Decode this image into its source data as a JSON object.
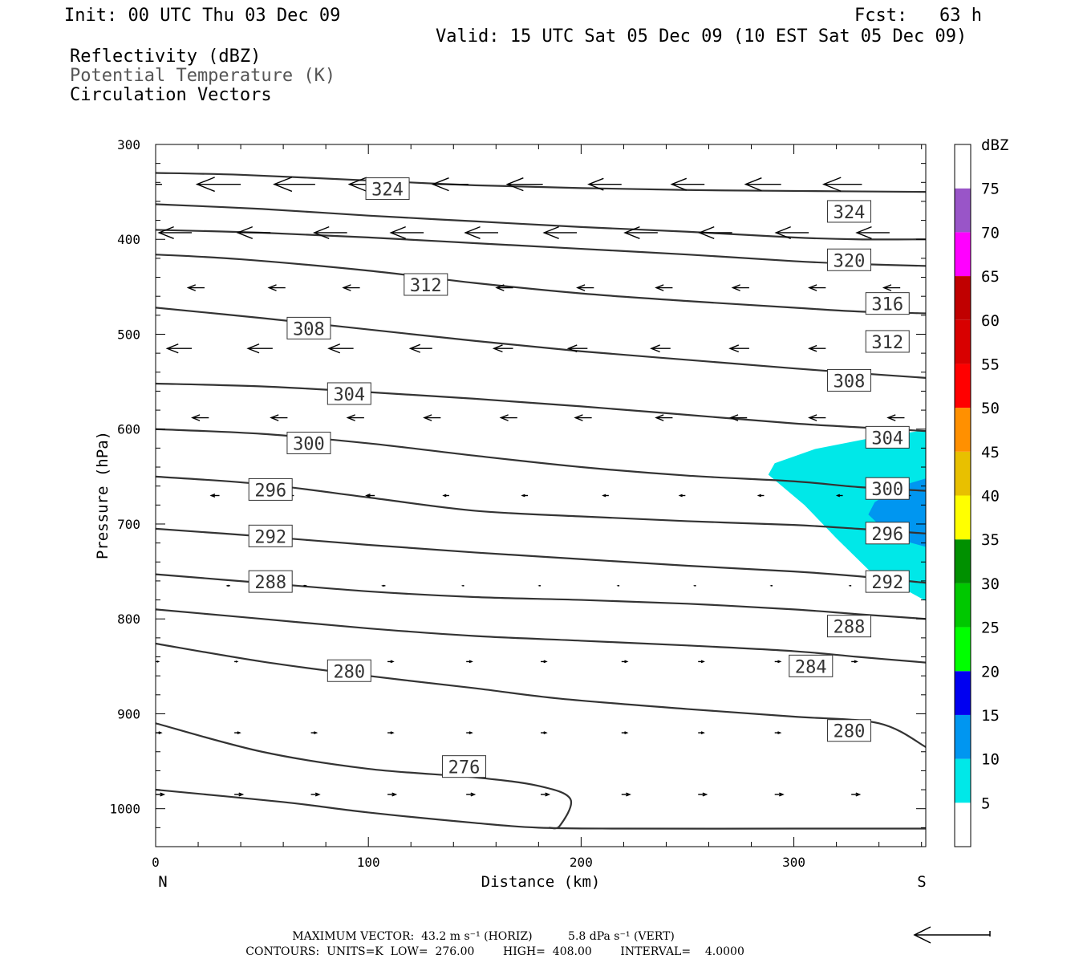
{
  "header": {
    "init": "Init: 00 UTC Thu 03 Dec 09",
    "fcst": "Fcst:   63 h",
    "valid": "Valid: 15 UTC Sat 05 Dec 09 (10 EST Sat 05 Dec 09)",
    "field1": "Reflectivity (dBZ)",
    "field2": "Potential Temperature (K)",
    "field3": "Circulation Vectors"
  },
  "footer": {
    "line1": "MAXIMUM VECTOR:  43.2 m s⁻¹ (HORIZ)          5.8 dPa s⁻¹ (VERT)",
    "line2": "CONTOURS:  UNITS=K  LOW=  276.00        HIGH=  408.00        INTERVAL=    4.0000"
  },
  "chart_data": {
    "type": "cross-section",
    "xlabel": "Distance (km)",
    "ylabel": "Pressure (hPa)",
    "x_end_labels": {
      "left": "N",
      "right": "S"
    },
    "xlim": [
      0,
      362
    ],
    "ylim": [
      1040,
      300
    ],
    "x_ticks": [
      0,
      100,
      200,
      300
    ],
    "y_ticks": [
      300,
      400,
      500,
      600,
      700,
      800,
      900,
      1000
    ],
    "colors": {
      "contour": "#333333",
      "refl_5": "#00e8e8",
      "refl_10": "#0096f0"
    },
    "theta_contours": [
      {
        "value": 324,
        "points": [
          [
            0,
            330
          ],
          [
            40,
            332
          ],
          [
            100,
            338
          ],
          [
            150,
            343
          ],
          [
            200,
            346
          ],
          [
            250,
            348
          ],
          [
            300,
            349
          ],
          [
            362,
            350
          ]
        ]
      },
      {
        "value": 324,
        "points": [
          [
            0,
            363
          ],
          [
            50,
            368
          ],
          [
            100,
            375
          ],
          [
            150,
            381
          ],
          [
            200,
            387
          ],
          [
            250,
            392
          ],
          [
            300,
            398
          ],
          [
            330,
            400
          ],
          [
            362,
            400
          ]
        ]
      },
      {
        "value": 320,
        "points": [
          [
            0,
            390
          ],
          [
            50,
            393
          ],
          [
            100,
            398
          ],
          [
            150,
            404
          ],
          [
            200,
            410
          ],
          [
            250,
            416
          ],
          [
            300,
            423
          ],
          [
            330,
            426
          ],
          [
            362,
            428
          ]
        ]
      },
      {
        "value": 316,
        "points": [
          [
            0,
            416
          ],
          [
            40,
            421
          ],
          [
            100,
            433
          ],
          [
            150,
            446
          ],
          [
            200,
            457
          ],
          [
            250,
            465
          ],
          [
            300,
            472
          ],
          [
            330,
            476
          ],
          [
            362,
            478
          ]
        ]
      },
      {
        "value": 312,
        "points": [
          [
            0,
            472
          ],
          [
            50,
            483
          ],
          [
            100,
            495
          ],
          [
            150,
            507
          ],
          [
            200,
            518
          ],
          [
            250,
            527
          ],
          [
            300,
            536
          ],
          [
            330,
            541
          ],
          [
            362,
            546
          ]
        ]
      },
      {
        "value": 308,
        "points": [
          [
            0,
            552
          ],
          [
            50,
            555
          ],
          [
            100,
            561
          ],
          [
            150,
            568
          ],
          [
            200,
            576
          ],
          [
            250,
            585
          ],
          [
            300,
            594
          ],
          [
            330,
            598
          ],
          [
            362,
            602
          ]
        ]
      },
      {
        "value": 304,
        "points": [
          [
            0,
            600
          ],
          [
            50,
            605
          ],
          [
            100,
            615
          ],
          [
            150,
            628
          ],
          [
            200,
            640
          ],
          [
            250,
            649
          ],
          [
            300,
            655
          ],
          [
            330,
            661
          ],
          [
            362,
            665
          ]
        ]
      },
      {
        "value": 300,
        "points": [
          [
            0,
            650
          ],
          [
            50,
            658
          ],
          [
            100,
            672
          ],
          [
            150,
            686
          ],
          [
            200,
            692
          ],
          [
            250,
            697
          ],
          [
            300,
            701
          ],
          [
            330,
            705
          ],
          [
            362,
            710
          ]
        ]
      },
      {
        "value": 296,
        "points": [
          [
            0,
            705
          ],
          [
            50,
            713
          ],
          [
            100,
            722
          ],
          [
            150,
            730
          ],
          [
            200,
            737
          ],
          [
            250,
            744
          ],
          [
            300,
            750
          ],
          [
            330,
            755
          ],
          [
            362,
            762
          ]
        ]
      },
      {
        "value": 292,
        "points": [
          [
            0,
            753
          ],
          [
            50,
            762
          ],
          [
            100,
            771
          ],
          [
            150,
            777
          ],
          [
            200,
            780
          ],
          [
            250,
            784
          ],
          [
            300,
            790
          ],
          [
            330,
            795
          ],
          [
            362,
            800
          ]
        ]
      },
      {
        "value": 288,
        "points": [
          [
            0,
            790
          ],
          [
            50,
            800
          ],
          [
            100,
            810
          ],
          [
            150,
            818
          ],
          [
            200,
            823
          ],
          [
            250,
            828
          ],
          [
            300,
            834
          ],
          [
            330,
            840
          ],
          [
            362,
            846
          ]
        ]
      },
      {
        "value": 284,
        "points": [
          [
            0,
            826
          ],
          [
            50,
            845
          ],
          [
            100,
            860
          ],
          [
            150,
            873
          ],
          [
            190,
            884
          ],
          [
            250,
            895
          ],
          [
            300,
            903
          ],
          [
            340,
            910
          ],
          [
            362,
            935
          ]
        ]
      },
      {
        "value": 280,
        "points": [
          [
            0,
            910
          ],
          [
            50,
            940
          ],
          [
            100,
            958
          ],
          [
            150,
            967
          ],
          [
            180,
            976
          ],
          [
            195,
            990
          ],
          [
            190,
            1018
          ],
          [
            185,
            1020
          ]
        ]
      },
      {
        "value": 276,
        "points": [
          [
            0,
            980
          ],
          [
            60,
            993
          ],
          [
            100,
            1004
          ],
          [
            150,
            1015
          ],
          [
            180,
            1020
          ],
          [
            220,
            1021
          ],
          [
            300,
            1021
          ],
          [
            362,
            1021
          ]
        ]
      }
    ],
    "contour_labels": [
      {
        "text": "324",
        "x": 109,
        "y": 347
      },
      {
        "text": "324",
        "x": 326,
        "y": 371
      },
      {
        "text": "320",
        "x": 326,
        "y": 422
      },
      {
        "text": "316",
        "x": 344,
        "y": 468
      },
      {
        "text": "312",
        "x": 127,
        "y": 448
      },
      {
        "text": "312",
        "x": 344,
        "y": 508
      },
      {
        "text": "308",
        "x": 72,
        "y": 494
      },
      {
        "text": "308",
        "x": 326,
        "y": 549
      },
      {
        "text": "304",
        "x": 91,
        "y": 563
      },
      {
        "text": "304",
        "x": 344,
        "y": 609
      },
      {
        "text": "300",
        "x": 72,
        "y": 615
      },
      {
        "text": "300",
        "x": 344,
        "y": 663
      },
      {
        "text": "296",
        "x": 54,
        "y": 664
      },
      {
        "text": "296",
        "x": 344,
        "y": 710
      },
      {
        "text": "292",
        "x": 54,
        "y": 713
      },
      {
        "text": "292",
        "x": 344,
        "y": 761
      },
      {
        "text": "288",
        "x": 54,
        "y": 761
      },
      {
        "text": "288",
        "x": 326,
        "y": 808
      },
      {
        "text": "280",
        "x": 91,
        "y": 855
      },
      {
        "text": "284",
        "x": 308,
        "y": 850
      },
      {
        "text": "280",
        "x": 326,
        "y": 918
      },
      {
        "text": "276",
        "x": 145,
        "y": 956
      }
    ],
    "reflectivity": [
      {
        "level": 5,
        "points": [
          [
            288,
            648
          ],
          [
            291,
            636
          ],
          [
            310,
            621
          ],
          [
            335,
            610
          ],
          [
            362,
            601
          ],
          [
            362,
            781
          ],
          [
            335,
            748
          ],
          [
            320,
            715
          ],
          [
            305,
            680
          ]
        ]
      },
      {
        "level": 10,
        "points": [
          [
            335,
            690
          ],
          [
            338,
            677
          ],
          [
            350,
            660
          ],
          [
            362,
            652
          ],
          [
            362,
            724
          ],
          [
            352,
            718
          ],
          [
            342,
            705
          ]
        ]
      }
    ],
    "vectors": [
      {
        "p": 342,
        "x": [
          3,
          40,
          75,
          109,
          147,
          182,
          219,
          258,
          294,
          332
        ],
        "u": [
          -16,
          -16,
          -15,
          -14,
          -13,
          -13,
          -12,
          -12,
          -13,
          -14
        ],
        "w": [
          0,
          0,
          0,
          0,
          0,
          0,
          0,
          0,
          0,
          0
        ]
      },
      {
        "p": 393,
        "x": [
          17,
          54,
          90,
          126,
          161,
          198,
          236,
          271,
          307,
          345
        ],
        "u": [
          -12,
          -12,
          -12,
          -12,
          -12,
          -12,
          -12,
          -12,
          -12,
          -12
        ],
        "w": [
          0,
          0,
          0,
          0,
          0,
          0,
          0,
          0,
          0,
          0
        ]
      },
      {
        "p": 451,
        "x": [
          23,
          61,
          96,
          134,
          168,
          206,
          243,
          279,
          315,
          350
        ],
        "u": [
          -6,
          -6,
          -6,
          -6,
          -6,
          -6,
          -6,
          -6,
          -6,
          -6
        ],
        "w": [
          0,
          0,
          0,
          0,
          0,
          0,
          0,
          0,
          0,
          0
        ]
      },
      {
        "p": 515,
        "x": [
          17,
          55,
          93,
          130,
          168,
          203,
          242,
          279,
          315,
          352
        ],
        "u": [
          -9,
          -9,
          -9,
          -8,
          -7,
          -7,
          -7,
          -7,
          -6,
          -6
        ],
        "w": [
          0,
          0,
          0,
          0,
          0,
          0,
          0,
          0,
          0,
          0
        ]
      },
      {
        "p": 588,
        "x": [
          25,
          62,
          98,
          134,
          170,
          205,
          243,
          278,
          315,
          352
        ],
        "u": [
          -6,
          -6,
          -6,
          -6,
          -6,
          -6,
          -6,
          -6,
          -6,
          -6
        ],
        "w": [
          0,
          0,
          0,
          0,
          0,
          0,
          0,
          0,
          0,
          0
        ]
      },
      {
        "p": 670,
        "x": [
          30,
          65,
          103,
          138,
          175,
          213,
          249,
          286,
          323,
          355
        ],
        "u": [
          -3,
          -3,
          -3,
          -2,
          -2,
          -2,
          -2,
          -2,
          -2,
          -2
        ],
        "w": [
          0,
          0,
          0,
          0,
          0,
          0,
          0,
          0,
          0,
          0
        ]
      },
      {
        "p": 765,
        "x": [
          35,
          71,
          108,
          145,
          181,
          218,
          254,
          290,
          327
        ],
        "u": [
          -1,
          -1,
          -1,
          -0.5,
          -0.5,
          -0.5,
          -0.5,
          -0.5,
          -0.5
        ],
        "w": [
          0,
          0,
          0,
          0,
          0,
          0,
          0,
          0,
          0
        ]
      },
      {
        "p": 845,
        "x": [
          0,
          37,
          109,
          146,
          181,
          219,
          255,
          291,
          327
        ],
        "u": [
          1,
          1,
          2,
          2,
          2,
          2,
          2,
          2,
          2
        ],
        "w": [
          0,
          0,
          0,
          0,
          0,
          0,
          0,
          0,
          0
        ]
      },
      {
        "p": 920,
        "x": [
          0,
          37,
          73,
          109,
          146,
          181,
          219,
          255,
          291,
          327
        ],
        "u": [
          2,
          2,
          2,
          2,
          2,
          2,
          2,
          2,
          2,
          2
        ],
        "w": [
          0,
          0,
          0,
          0,
          0,
          0,
          0,
          0,
          0,
          0
        ]
      },
      {
        "p": 985,
        "x": [
          0,
          37,
          73,
          109,
          146,
          181,
          219,
          255,
          291,
          327
        ],
        "u": [
          3,
          3,
          3,
          3,
          3,
          3,
          3,
          3,
          3,
          3
        ],
        "w": [
          0,
          0,
          0,
          0,
          0,
          0,
          0,
          0,
          0,
          0
        ]
      }
    ],
    "colorbar": {
      "unit": "dBZ",
      "levels": [
        5,
        10,
        15,
        20,
        25,
        30,
        35,
        40,
        45,
        50,
        55,
        60,
        65,
        70,
        75
      ],
      "colors": [
        "#ffffff",
        "#00e8e8",
        "#0096f0",
        "#0000f0",
        "#00ff00",
        "#00c800",
        "#009000",
        "#ffff00",
        "#e8c000",
        "#ff9000",
        "#ff0000",
        "#d80000",
        "#c00000",
        "#ff00ff",
        "#9955c8",
        "#ffffff"
      ]
    },
    "reference_vector": {
      "u_max": 43.2,
      "w_max": 5.8
    }
  }
}
